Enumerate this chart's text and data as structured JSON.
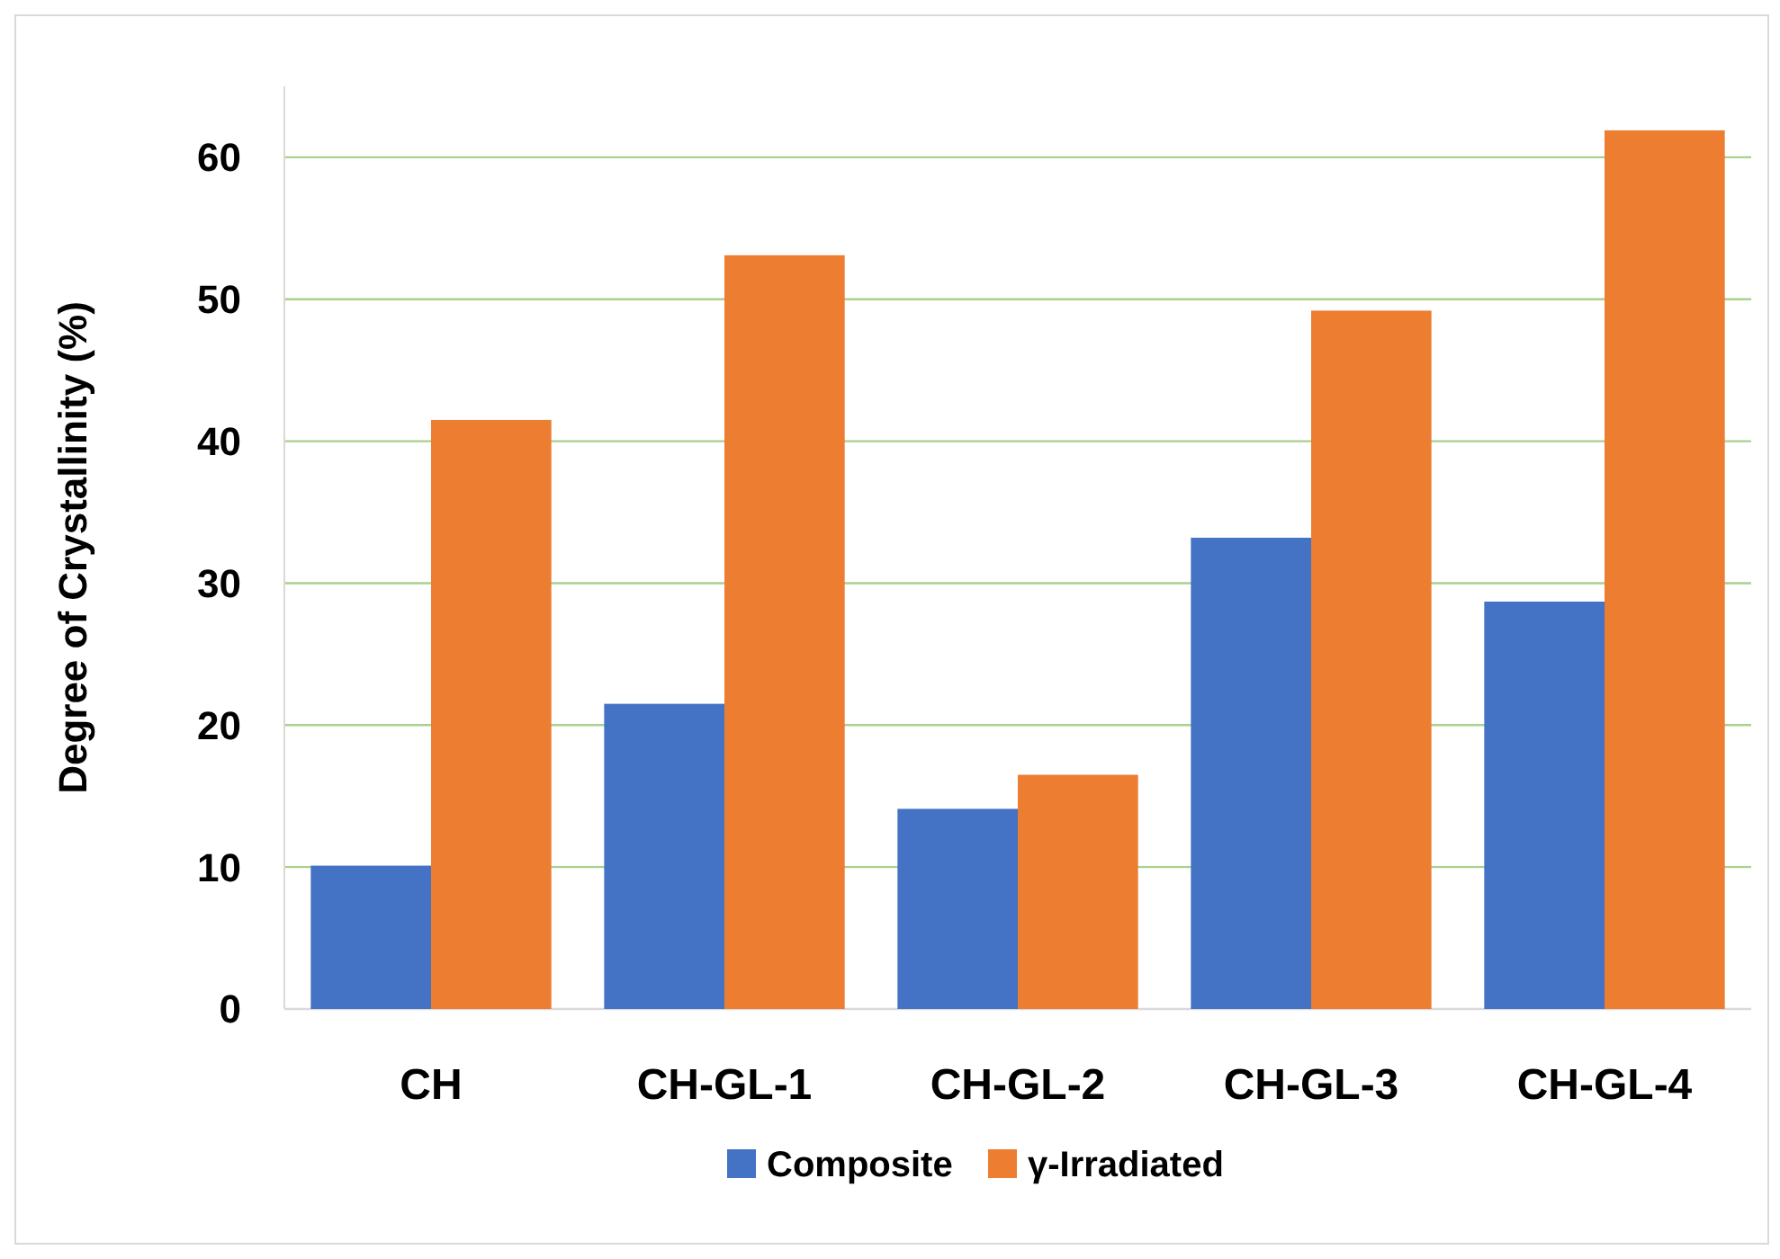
{
  "chart_data": {
    "type": "bar",
    "ylabel": "Degree of Crystallinity (%)",
    "categories": [
      "CH",
      "CH-GL-1",
      "CH-GL-2",
      "CH-GL-3",
      "CH-GL-4"
    ],
    "series": [
      {
        "name": "Composite",
        "color": "#4472c4",
        "values": [
          10.1,
          21.5,
          14.1,
          33.2,
          28.7
        ]
      },
      {
        "name": "γ-Irradiated",
        "color": "#ed7d31",
        "values": [
          41.5,
          53.1,
          16.5,
          49.2,
          61.9
        ]
      }
    ],
    "ylim": [
      0,
      65
    ],
    "yticks": [
      0,
      10,
      20,
      30,
      40,
      50,
      60
    ],
    "grid": "y",
    "legend": "bottom"
  }
}
